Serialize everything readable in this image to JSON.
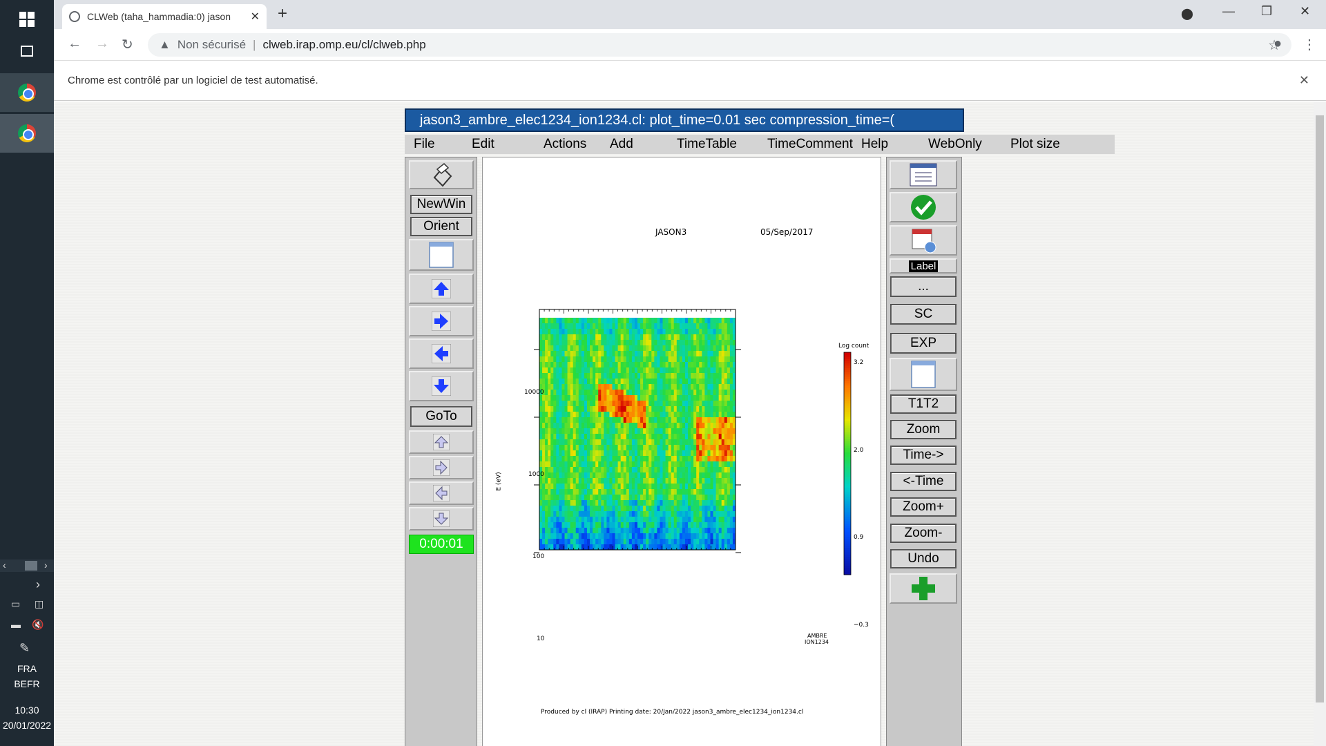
{
  "taskbar": {
    "lang": "FRA",
    "layout": "BEFR",
    "time": "10:30",
    "date": "20/01/2022"
  },
  "browser": {
    "tab_title": "CLWeb (taha_hammadia:0) jason",
    "security_label": "Non sécurisé",
    "url": "clweb.irap.omp.eu/cl/clweb.php",
    "infobar_text": "Chrome est contrôlé par un logiciel de test automatisé."
  },
  "app": {
    "title": "jason3_ambre_elec1234_ion1234.cl:     plot_time=0.01 sec  compression_time=(",
    "menu": [
      "File",
      "Edit",
      "Actions",
      "Add",
      "TimeTable",
      "TimeComment",
      "Help",
      "WebOnly",
      "Plot size"
    ],
    "left_buttons": {
      "newwin": "NewWin",
      "orient": "Orient",
      "goto": "GoTo",
      "timer": "0:00:01"
    },
    "right_buttons": {
      "label": "Label",
      "dots": "...",
      "sc": "SC",
      "exp": "EXP",
      "t1t2": "T1T2",
      "zoom": "Zoom",
      "time_fwd": "Time->",
      "time_back": "<-Time",
      "zoom_plus": "Zoom+",
      "zoom_minus": "Zoom-",
      "undo": "Undo"
    }
  },
  "plot": {
    "mission": "JASON3",
    "date": "05/Sep/2017",
    "ylabel": "E (eV)",
    "yticks": [
      "10000",
      "1000",
      "100",
      "10"
    ],
    "colorbar_title": "Log count",
    "colorbar_ticks": [
      "3.2",
      "2.0",
      "0.9",
      "−0.3"
    ],
    "instrument_line1": "AMBRE",
    "instrument_line2": "ION1234",
    "footer": "Produced by cl (IRAP)    Printing date: 20/Jan/2022     jason3_ambre_elec1234_ion1234.cl"
  },
  "colors": {
    "title_bar": "#1b5aa1",
    "timer_green": "#1ee31e",
    "arrow_blue": "#1f3fff"
  }
}
